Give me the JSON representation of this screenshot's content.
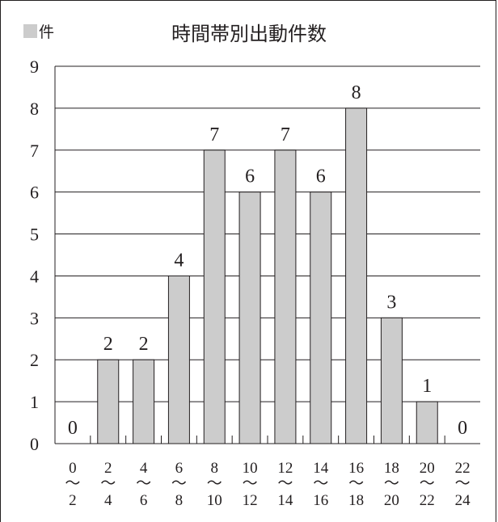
{
  "chart_data": {
    "type": "bar",
    "title": "時間帯別出動件数",
    "legend": "件",
    "ylim": [
      0,
      9
    ],
    "y_ticks": [
      "0",
      "1",
      "2",
      "3",
      "4",
      "5",
      "6",
      "7",
      "8",
      "9"
    ],
    "categories": [
      {
        "from": "0",
        "sep": "〜",
        "to": "2"
      },
      {
        "from": "2",
        "sep": "〜",
        "to": "4"
      },
      {
        "from": "4",
        "sep": "〜",
        "to": "6"
      },
      {
        "from": "6",
        "sep": "〜",
        "to": "8"
      },
      {
        "from": "8",
        "sep": "〜",
        "to": "10"
      },
      {
        "from": "10",
        "sep": "〜",
        "to": "12"
      },
      {
        "from": "12",
        "sep": "〜",
        "to": "14"
      },
      {
        "from": "14",
        "sep": "〜",
        "to": "16"
      },
      {
        "from": "16",
        "sep": "〜",
        "to": "18"
      },
      {
        "from": "18",
        "sep": "〜",
        "to": "20"
      },
      {
        "from": "20",
        "sep": "〜",
        "to": "22"
      },
      {
        "from": "22",
        "sep": "〜",
        "to": "24"
      }
    ],
    "values": [
      0,
      2,
      2,
      4,
      7,
      6,
      7,
      6,
      8,
      3,
      1,
      0
    ],
    "bar_color": "#cccccc",
    "line_color": "#231f20",
    "grid": true
  }
}
